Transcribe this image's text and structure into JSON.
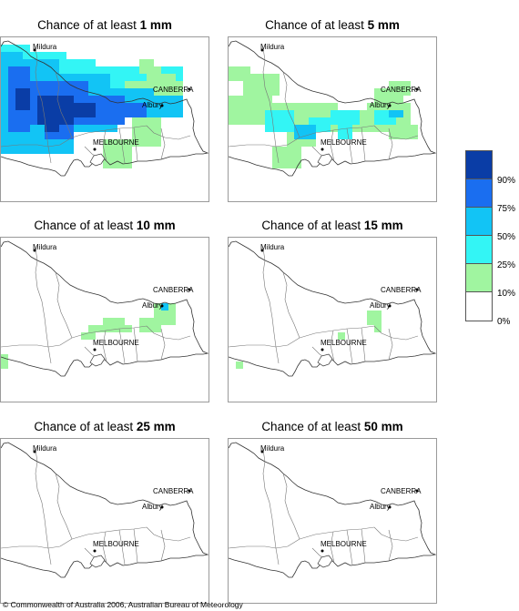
{
  "panels": [
    {
      "prefix": "Chance of at least ",
      "amount": "1 mm",
      "cells_key": "p1"
    },
    {
      "prefix": "Chance of at least ",
      "amount": "5 mm",
      "cells_key": "p5"
    },
    {
      "prefix": "Chance of at least ",
      "amount": "10 mm",
      "cells_key": "p10"
    },
    {
      "prefix": "Chance of at least ",
      "amount": "15 mm",
      "cells_key": "p15"
    },
    {
      "prefix": "Chance of at least ",
      "amount": "25 mm",
      "cells_key": "p25"
    },
    {
      "prefix": "Chance of at least ",
      "amount": "50 mm",
      "cells_key": "p50"
    }
  ],
  "places": {
    "mildura": "Mildura",
    "canberra": "CANBERRA",
    "albury": "Albury",
    "melbourne": "MELBOURNE"
  },
  "legend": {
    "labels": [
      "90%",
      "75%",
      "50%",
      "25%",
      "10%",
      "0%"
    ],
    "colors": [
      "#0a3da6",
      "#1a6ef0",
      "#12c4f5",
      "#33f5f5",
      "#a0f5a0",
      "#ffffff"
    ]
  },
  "copyright": "© Commonwealth of Australia 2006, Australian Bureau of Meteorology"
}
